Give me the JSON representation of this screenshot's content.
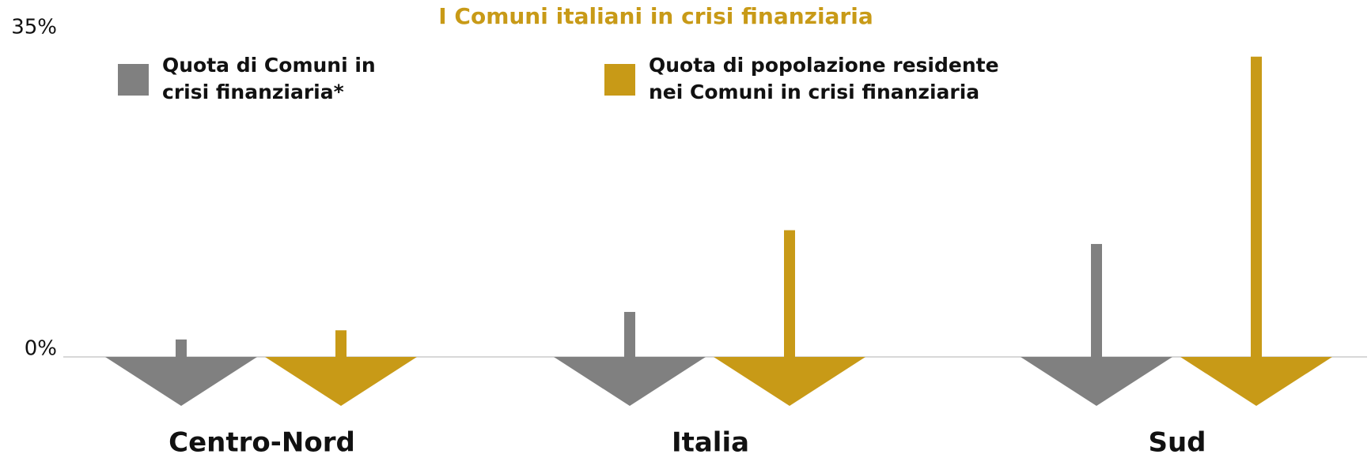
{
  "chart_data": {
    "type": "bar",
    "title": "I Comuni italiani in crisi finanziaria",
    "categories": [
      "Centro-Nord",
      "Italia",
      "Sud"
    ],
    "series": [
      {
        "name": "Quota di Comuni in crisi finanziaria*",
        "color": "#808080",
        "values": [
          1.9,
          4.9,
          12.3
        ]
      },
      {
        "name": "Quota di popolazione residente nei Comuni in crisi finanziaria",
        "color": "#c89a17",
        "values": [
          2.9,
          13.8,
          32.7
        ]
      }
    ],
    "ylim": [
      0,
      35
    ],
    "yticks": [
      {
        "value": 0,
        "label": "0%"
      },
      {
        "value": 35,
        "label": "35%"
      }
    ],
    "grid": false
  }
}
